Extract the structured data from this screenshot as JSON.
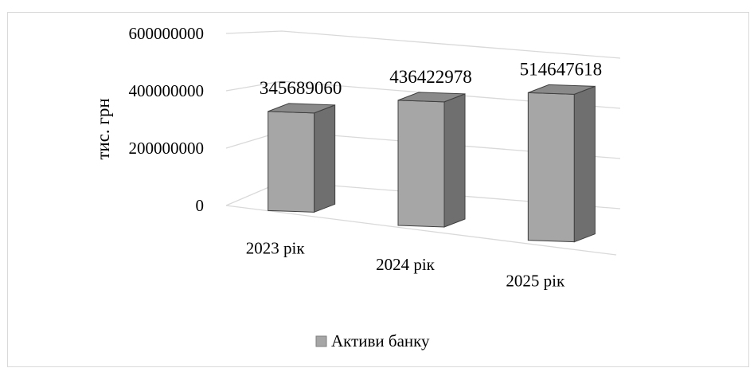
{
  "chart_data": {
    "type": "bar",
    "categories": [
      "2023 рік",
      "2024 рік",
      "2025 рік"
    ],
    "series": [
      {
        "name": "Активи банку",
        "values": [
          345689060,
          436422978,
          514647618
        ]
      }
    ],
    "data_labels": [
      "345689060",
      "436422978",
      "514647618"
    ],
    "ylabel": "тис. грн",
    "ylim": [
      0,
      600000000
    ],
    "yticks": [
      "0",
      "200000000",
      "400000000",
      "600000000"
    ],
    "grid": true,
    "legend": "bottom",
    "colors": {
      "bar_front": "#a6a6a6",
      "bar_side": "#6f6f6f",
      "bar_top": "#8a8a8a",
      "gridline": "#d9d9d9",
      "legend_swatch": "#a6a6a6"
    },
    "style": "3d-column"
  }
}
